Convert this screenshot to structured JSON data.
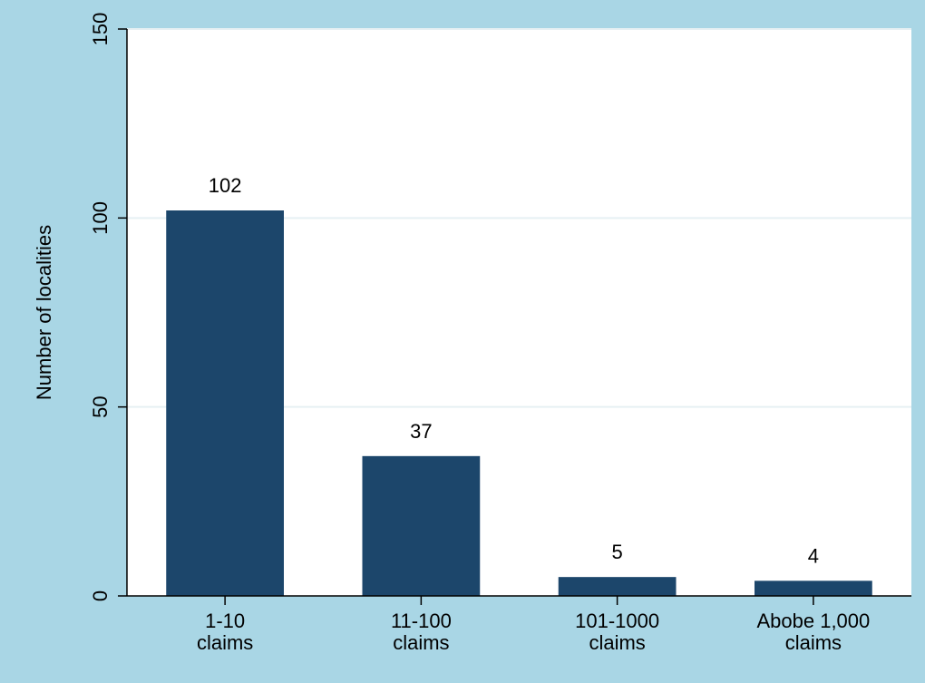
{
  "chart_data": {
    "type": "bar",
    "categories": [
      [
        "1-10",
        "claims"
      ],
      [
        "11-100",
        "claims"
      ],
      [
        "101-1000",
        "claims"
      ],
      [
        "Abobe 1,000",
        "claims"
      ]
    ],
    "values": [
      102,
      37,
      5,
      4
    ],
    "data_labels": [
      "102",
      "37",
      "5",
      "4"
    ],
    "title": "",
    "xlabel": "",
    "ylabel": "Number of localities",
    "ylim": [
      0,
      150
    ],
    "yticks": [
      0,
      50,
      100,
      150
    ],
    "grid": true,
    "legend": "none",
    "colors": {
      "bar": "#1c466b",
      "background": "#a9d6e5",
      "plot_background": "#ffffff",
      "grid": "#e6f0f3",
      "axis": "#000000"
    }
  }
}
